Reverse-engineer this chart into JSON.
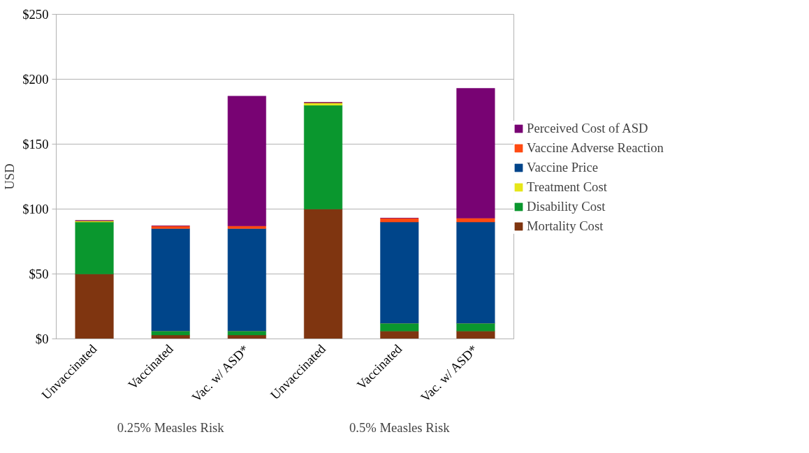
{
  "chart_data": {
    "type": "bar",
    "stacked": true,
    "ylabel": "USD",
    "categories": [
      "Unvaccinated",
      "Vaccinated",
      "Vac. w/ ASD*",
      "Unvaccinated",
      "Vaccinated",
      "Vac. w/ ASD*"
    ],
    "annotations": [
      "0.25% Measles Risk",
      "0.5% Measles Risk"
    ],
    "series": [
      {
        "name": "Mortality Cost",
        "color": "#7f3510",
        "values": [
          50,
          3,
          3,
          100,
          6,
          6
        ]
      },
      {
        "name": "Disability Cost",
        "color": "#0a972e",
        "values": [
          40,
          3,
          3,
          80,
          6,
          6
        ]
      },
      {
        "name": "Treatment Cost",
        "color": "#e6e619",
        "values": [
          1,
          0,
          0,
          2,
          0,
          0
        ]
      },
      {
        "name": "Vaccine Price",
        "color": "#00458a",
        "values": [
          0,
          79,
          79,
          0,
          78,
          78
        ]
      },
      {
        "name": "Vaccine Adverse Reaction",
        "color": "#ff4a12",
        "values": [
          0,
          2,
          2,
          0,
          3,
          3
        ]
      },
      {
        "name": "Perceived Cost of ASD",
        "color": "#780373",
        "values": [
          0,
          0,
          100,
          0,
          0,
          100
        ]
      }
    ],
    "ylim": [
      0,
      250
    ],
    "yticks": [
      {
        "value": 0,
        "label": "$0"
      },
      {
        "value": 50,
        "label": "$50"
      },
      {
        "value": 100,
        "label": "$100"
      },
      {
        "value": 150,
        "label": "$150"
      },
      {
        "value": 200,
        "label": "$200"
      },
      {
        "value": 250,
        "label": "$250"
      }
    ],
    "grid": "y",
    "legend": "right"
  }
}
